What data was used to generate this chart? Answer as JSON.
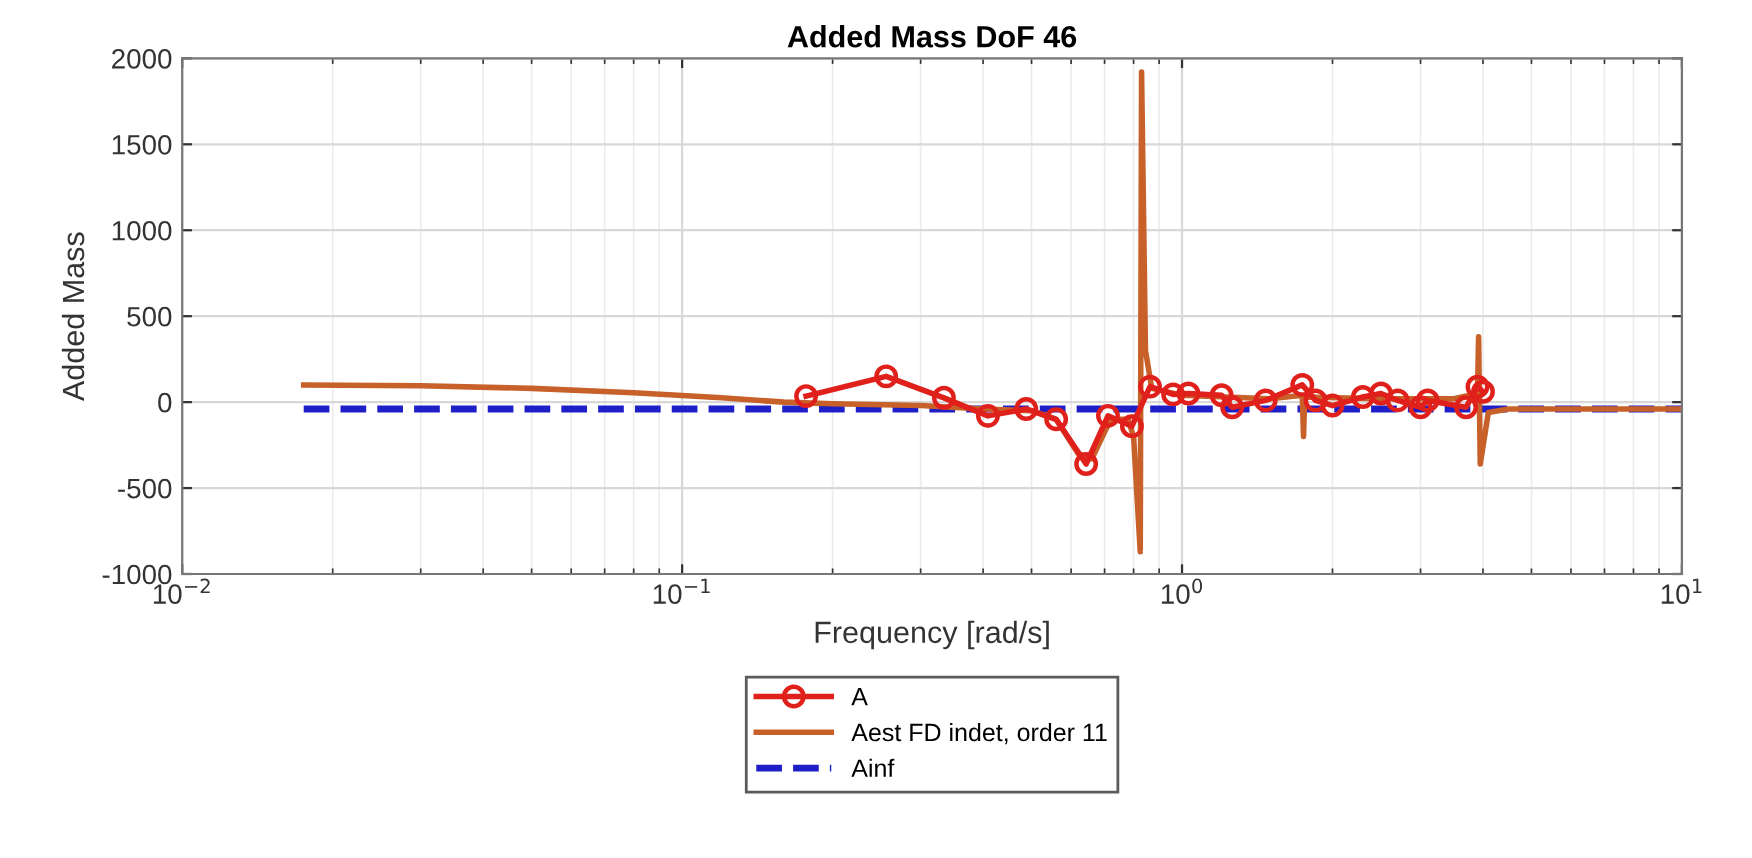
{
  "chart_data": {
    "type": "line",
    "title": "Added Mass DoF 46",
    "xlabel": "Frequency [rad/s]",
    "ylabel": "Added Mass",
    "log": "x",
    "grid": true,
    "legend": "bottom",
    "xlim": [
      0.01,
      10
    ],
    "xticks": [
      {
        "value": 0.01,
        "label": "10$^{−2}$"
      },
      {
        "value": 0.1,
        "label": "10$^{−1}$"
      },
      {
        "value": 1,
        "label": "10$^{0}$"
      },
      {
        "value": 10,
        "label": "10$^{1}$"
      }
    ],
    "ylim": [
      -1000,
      2000
    ],
    "yticks": [
      -1000,
      -500,
      0,
      500,
      1000,
      1500,
      2000
    ],
    "series": [
      {
        "name": "A",
        "color": "#e0201b",
        "marker": "circle",
        "line_style": "solid",
        "x": [
          0.177,
          0.256,
          0.334,
          0.409,
          0.488,
          0.56,
          0.643,
          0.711,
          0.794,
          0.863,
          0.96,
          1.03,
          1.2,
          1.26,
          1.47,
          1.74,
          1.85,
          2.0,
          2.3,
          2.5,
          2.7,
          3.0,
          3.1,
          3.7,
          3.9,
          4.0
        ],
        "values": [
          35,
          150,
          25,
          -80,
          -40,
          -100,
          -360,
          -80,
          -140,
          90,
          45,
          50,
          40,
          -30,
          10,
          100,
          10,
          -20,
          30,
          50,
          10,
          -30,
          10,
          -30,
          90,
          60
        ]
      },
      {
        "name": "Aest FD indet, order 11",
        "color": "#c8602a",
        "marker": "none",
        "line_style": "solid",
        "x": [
          0.0175,
          0.03,
          0.05,
          0.08,
          0.12,
          0.16,
          0.2,
          0.3,
          0.4,
          0.5,
          0.56,
          0.62,
          0.66,
          0.72,
          0.78,
          0.8,
          0.825,
          0.83,
          0.845,
          0.87,
          1.0,
          1.5,
          1.74,
          1.75,
          1.76,
          2.5,
          3.5,
          3.9,
          3.92,
          3.95,
          4.1,
          4.5,
          10
        ],
        "values": [
          100,
          95,
          80,
          55,
          25,
          0,
          -10,
          -20,
          -40,
          -50,
          -100,
          -300,
          -330,
          -100,
          -100,
          -200,
          -870,
          1920,
          300,
          80,
          40,
          20,
          40,
          -200,
          30,
          20,
          20,
          50,
          380,
          -360,
          -60,
          -40,
          -40
        ]
      },
      {
        "name": "Ainf",
        "color": "#1f1fc8",
        "marker": "none",
        "line_style": "dashed",
        "x": [
          0.0175,
          10
        ],
        "values": [
          -40,
          -40
        ]
      }
    ]
  }
}
